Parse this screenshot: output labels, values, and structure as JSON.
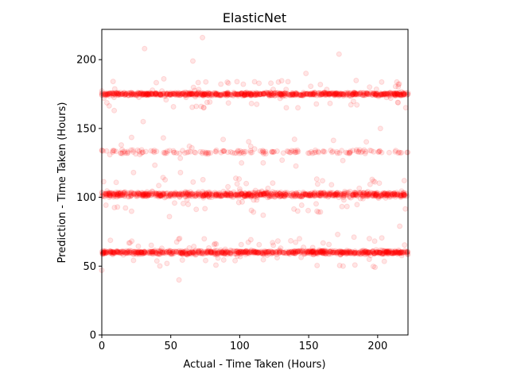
{
  "chart_data": {
    "type": "scatter",
    "title": "ElasticNet",
    "xlabel": "Actual - Time Taken (Hours)",
    "ylabel": "Prediction - Time Taken (Hours)",
    "xlim": [
      0,
      222
    ],
    "ylim": [
      0,
      222
    ],
    "xticks": [
      0,
      50,
      100,
      150,
      200
    ],
    "yticks": [
      0,
      50,
      100,
      150,
      200
    ],
    "grid": false,
    "legend": "none",
    "marker_color": "#ff0000",
    "marker_alpha": 0.1,
    "bands": [
      {
        "y": 60,
        "spread": 1.2,
        "x_range": [
          0,
          222
        ],
        "density": "high"
      },
      {
        "y": 102,
        "spread": 1.5,
        "x_range": [
          0,
          222
        ],
        "density": "high"
      },
      {
        "y": 133,
        "spread": 1.2,
        "x_range": [
          0,
          222
        ],
        "density": "medium"
      },
      {
        "y": 175,
        "spread": 1.0,
        "x_range": [
          0,
          222
        ],
        "density": "high"
      }
    ],
    "outliers": [
      {
        "x": 73,
        "y": 216
      },
      {
        "x": 31,
        "y": 208
      },
      {
        "x": 172,
        "y": 204
      },
      {
        "x": 66,
        "y": 199
      },
      {
        "x": 148,
        "y": 190
      },
      {
        "x": 45,
        "y": 186
      },
      {
        "x": 98,
        "y": 184
      },
      {
        "x": 215,
        "y": 182
      },
      {
        "x": 72,
        "y": 166
      },
      {
        "x": 9,
        "y": 163
      },
      {
        "x": 30,
        "y": 155
      },
      {
        "x": 202,
        "y": 150
      },
      {
        "x": 88,
        "y": 142
      },
      {
        "x": 108,
        "y": 137
      },
      {
        "x": 117,
        "y": 125
      },
      {
        "x": 57,
        "y": 118
      },
      {
        "x": 23,
        "y": 118
      },
      {
        "x": 196,
        "y": 113
      },
      {
        "x": 117,
        "y": 87
      },
      {
        "x": 142,
        "y": 90
      },
      {
        "x": 49,
        "y": 86
      },
      {
        "x": 216,
        "y": 79
      },
      {
        "x": 171,
        "y": 73
      },
      {
        "x": 194,
        "y": 70
      },
      {
        "x": 83,
        "y": 66
      },
      {
        "x": 56,
        "y": 40
      },
      {
        "x": 0,
        "y": 47
      }
    ]
  }
}
